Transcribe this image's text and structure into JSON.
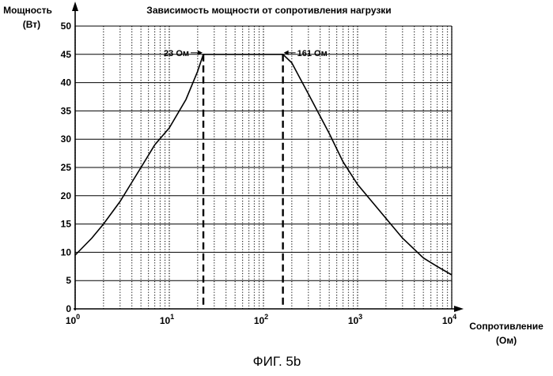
{
  "chart_data": {
    "type": "line",
    "title": "Зависимость мощности от сопротивления нагрузки",
    "ylabel_line1": "Мощность",
    "ylabel_line2": "(Вт)",
    "xlabel_line1": "Сопротивление",
    "xlabel_line2": "(Ом)",
    "x_scale": "log",
    "xlim": [
      1,
      10000
    ],
    "ylim": [
      0,
      50
    ],
    "yticks": [
      0,
      5,
      10,
      15,
      20,
      25,
      30,
      35,
      40,
      45,
      50
    ],
    "xticks": [
      {
        "value": 1,
        "mantissa": "10",
        "exp": "0"
      },
      {
        "value": 10,
        "mantissa": "10",
        "exp": "1"
      },
      {
        "value": 100,
        "mantissa": "10",
        "exp": "2"
      },
      {
        "value": 1000,
        "mantissa": "10",
        "exp": "3"
      },
      {
        "value": 10000,
        "mantissa": "10",
        "exp": "4"
      }
    ],
    "grid": "dotted vertical at log minor ticks",
    "series": [
      {
        "x": [
          1,
          1.5,
          2,
          3,
          5,
          7,
          10,
          15,
          20,
          23,
          100,
          161,
          200,
          300,
          500,
          700,
          1000,
          2000,
          3000,
          5000,
          7000,
          10000
        ],
        "y": [
          9.5,
          12.5,
          15,
          19,
          25,
          29,
          32,
          37,
          42,
          45,
          45,
          45,
          43.5,
          38,
          31,
          26,
          22,
          16,
          12.5,
          9,
          7.5,
          6
        ]
      }
    ],
    "markers": [
      {
        "x": 23,
        "label": "23 Ом"
      },
      {
        "x": 161,
        "label": "161 Ом"
      }
    ],
    "plateau_y": 45
  },
  "caption": "ФИГ. 5b"
}
